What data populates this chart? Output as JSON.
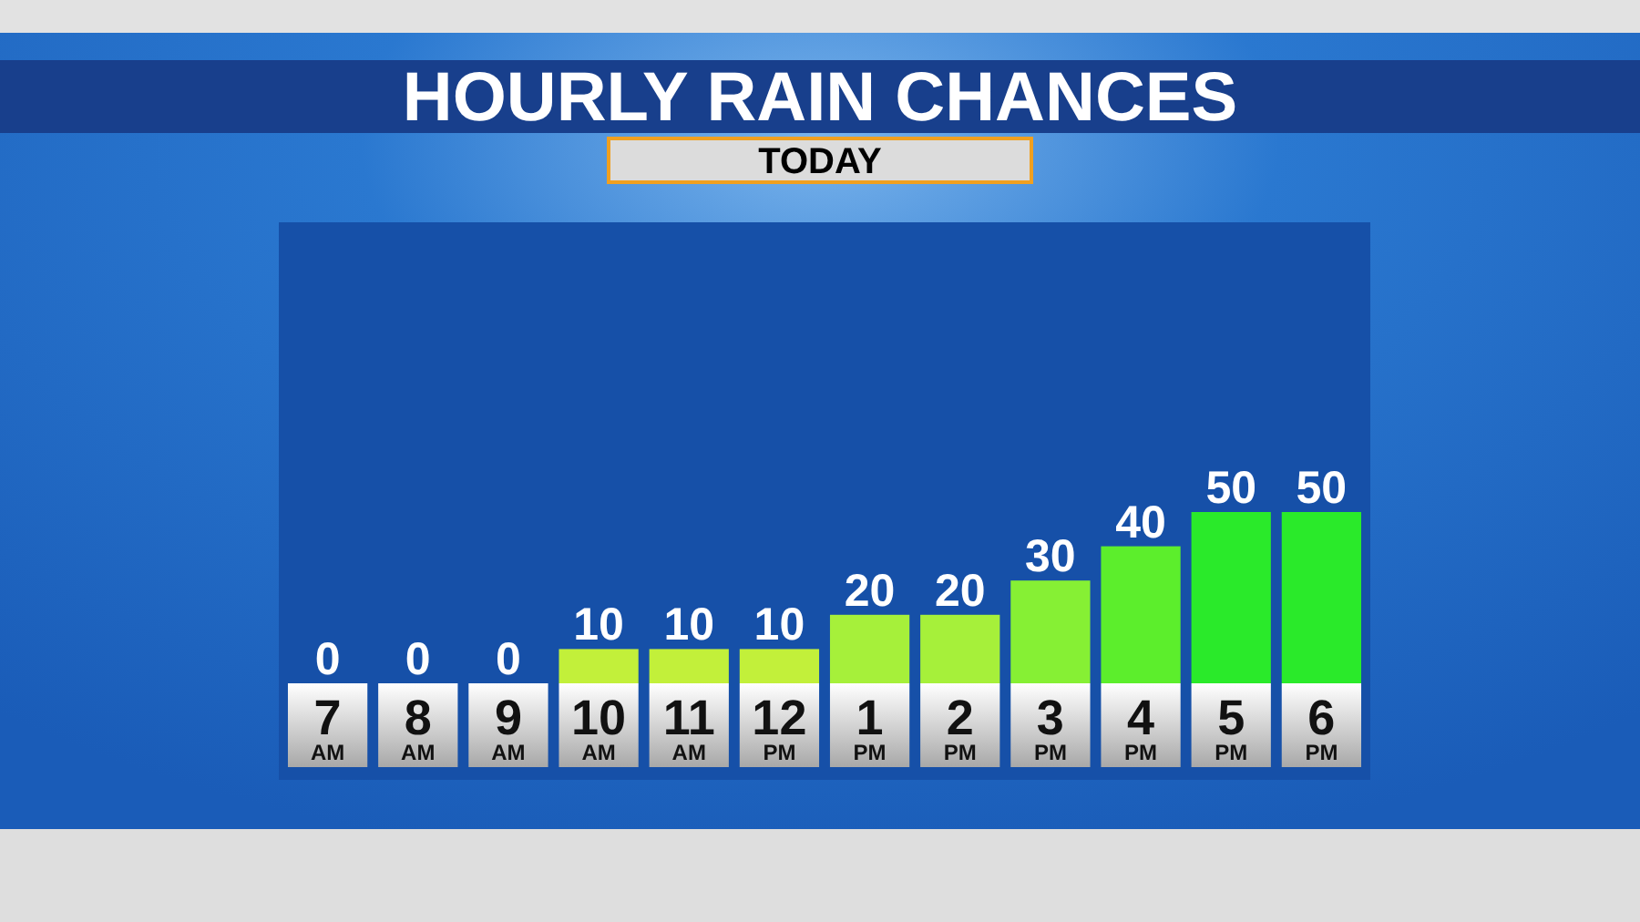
{
  "chart_data": {
    "type": "bar",
    "title": "HOURLY RAIN CHANCES",
    "subtitle": "TODAY",
    "categories": [
      "7 AM",
      "8 AM",
      "9 AM",
      "10 AM",
      "11 AM",
      "12 PM",
      "1 PM",
      "2 PM",
      "3 PM",
      "4 PM",
      "5 PM",
      "6 PM"
    ],
    "values": [
      0,
      0,
      0,
      10,
      10,
      10,
      20,
      20,
      30,
      40,
      50,
      50
    ],
    "colors": [
      "#dcf23a",
      "#dcf23a",
      "#dcf23a",
      "#c2f03a",
      "#c2f03a",
      "#c2f03a",
      "#a6f03a",
      "#a6f03a",
      "#86f034",
      "#5cee2c",
      "#2aea2a",
      "#2aea2a"
    ],
    "data_labels": true
  }
}
